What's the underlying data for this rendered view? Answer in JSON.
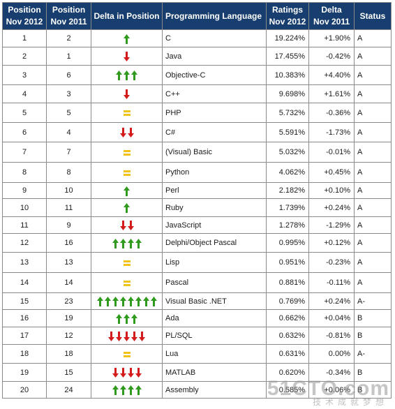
{
  "headers": {
    "pos2012": [
      "Position",
      "Nov 2012"
    ],
    "pos2011": [
      "Position",
      "Nov 2011"
    ],
    "delta_position": "Delta in Position",
    "language": "Programming Language",
    "ratings": [
      "Ratings",
      "Nov 2012"
    ],
    "delta_ratings": [
      "Delta",
      "Nov 2011"
    ],
    "status": "Status"
  },
  "colors": {
    "header_bg": "#173e6e",
    "up_arrow": "#2f9a1e",
    "down_arrow": "#d31b1b",
    "equal_sign": "#f0c21a"
  },
  "rows": [
    {
      "pos2012": "1",
      "pos2011": "2",
      "delta": {
        "type": "up",
        "count": 1
      },
      "language": "C",
      "rating": "19.224%",
      "delta_rating": "+1.90%",
      "status": "A"
    },
    {
      "pos2012": "2",
      "pos2011": "1",
      "delta": {
        "type": "down",
        "count": 1
      },
      "language": "Java",
      "rating": "17.455%",
      "delta_rating": "-0.42%",
      "status": "A"
    },
    {
      "pos2012": "3",
      "pos2011": "6",
      "delta": {
        "type": "up",
        "count": 3
      },
      "language": "Objective-C",
      "rating": "10.383%",
      "delta_rating": "+4.40%",
      "status": "A"
    },
    {
      "pos2012": "4",
      "pos2011": "3",
      "delta": {
        "type": "down",
        "count": 1
      },
      "language": "C++",
      "rating": "9.698%",
      "delta_rating": "+1.61%",
      "status": "A"
    },
    {
      "pos2012": "5",
      "pos2011": "5",
      "delta": {
        "type": "same",
        "count": 1
      },
      "language": "PHP",
      "rating": "5.732%",
      "delta_rating": "-0.36%",
      "status": "A"
    },
    {
      "pos2012": "6",
      "pos2011": "4",
      "delta": {
        "type": "down",
        "count": 2
      },
      "language": "C#",
      "rating": "5.591%",
      "delta_rating": "-1.73%",
      "status": "A"
    },
    {
      "pos2012": "7",
      "pos2011": "7",
      "delta": {
        "type": "same",
        "count": 1
      },
      "language": "(Visual) Basic",
      "rating": "5.032%",
      "delta_rating": "-0.01%",
      "status": "A"
    },
    {
      "pos2012": "8",
      "pos2011": "8",
      "delta": {
        "type": "same",
        "count": 1
      },
      "language": "Python",
      "rating": "4.062%",
      "delta_rating": "+0.45%",
      "status": "A"
    },
    {
      "pos2012": "9",
      "pos2011": "10",
      "delta": {
        "type": "up",
        "count": 1
      },
      "language": "Perl",
      "rating": "2.182%",
      "delta_rating": "+0.10%",
      "status": "A"
    },
    {
      "pos2012": "10",
      "pos2011": "11",
      "delta": {
        "type": "up",
        "count": 1
      },
      "language": "Ruby",
      "rating": "1.739%",
      "delta_rating": "+0.24%",
      "status": "A"
    },
    {
      "pos2012": "11",
      "pos2011": "9",
      "delta": {
        "type": "down",
        "count": 2
      },
      "language": "JavaScript",
      "rating": "1.278%",
      "delta_rating": "-1.29%",
      "status": "A"
    },
    {
      "pos2012": "12",
      "pos2011": "16",
      "delta": {
        "type": "up",
        "count": 4
      },
      "language": "Delphi/Object Pascal",
      "rating": "0.995%",
      "delta_rating": "+0.12%",
      "status": "A"
    },
    {
      "pos2012": "13",
      "pos2011": "13",
      "delta": {
        "type": "same",
        "count": 1
      },
      "language": "Lisp",
      "rating": "0.951%",
      "delta_rating": "-0.23%",
      "status": "A"
    },
    {
      "pos2012": "14",
      "pos2011": "14",
      "delta": {
        "type": "same",
        "count": 1
      },
      "language": "Pascal",
      "rating": "0.881%",
      "delta_rating": "-0.11%",
      "status": "A"
    },
    {
      "pos2012": "15",
      "pos2011": "23",
      "delta": {
        "type": "up",
        "count": 8
      },
      "language": "Visual Basic .NET",
      "rating": "0.769%",
      "delta_rating": "+0.24%",
      "status": "A-"
    },
    {
      "pos2012": "16",
      "pos2011": "19",
      "delta": {
        "type": "up",
        "count": 3
      },
      "language": "Ada",
      "rating": "0.662%",
      "delta_rating": "+0.04%",
      "status": "B"
    },
    {
      "pos2012": "17",
      "pos2011": "12",
      "delta": {
        "type": "down",
        "count": 5
      },
      "language": "PL/SQL",
      "rating": "0.632%",
      "delta_rating": "-0.81%",
      "status": "B"
    },
    {
      "pos2012": "18",
      "pos2011": "18",
      "delta": {
        "type": "same",
        "count": 1
      },
      "language": "Lua",
      "rating": "0.631%",
      "delta_rating": "0.00%",
      "status": "A-"
    },
    {
      "pos2012": "19",
      "pos2011": "15",
      "delta": {
        "type": "down",
        "count": 4
      },
      "language": "MATLAB",
      "rating": "0.620%",
      "delta_rating": "-0.34%",
      "status": "B"
    },
    {
      "pos2012": "20",
      "pos2011": "24",
      "delta": {
        "type": "up",
        "count": 4
      },
      "language": "Assembly",
      "rating": "0.585%",
      "delta_rating": "+0.06%",
      "status": "B"
    }
  ],
  "watermark": {
    "site": "51CTO.com",
    "tagline": "技术成就梦想"
  }
}
